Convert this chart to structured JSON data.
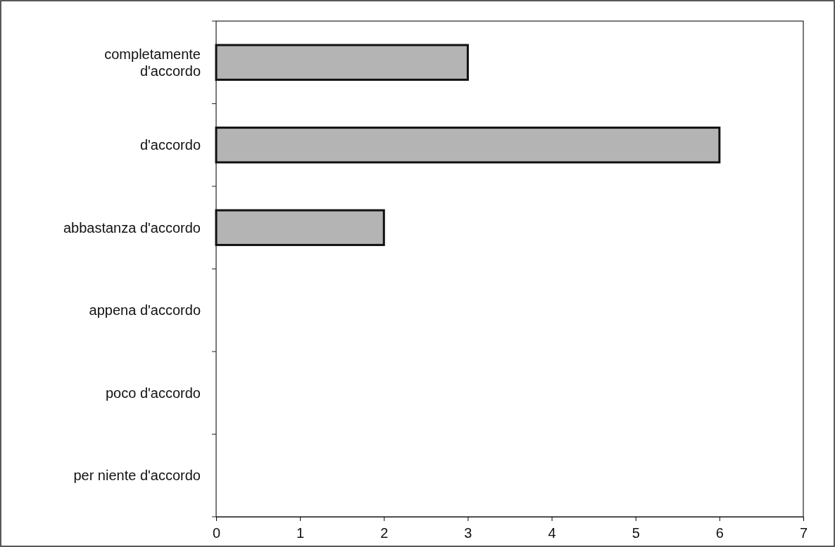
{
  "chart_data": {
    "type": "bar",
    "orientation": "horizontal",
    "categories": [
      "completamente d'accordo",
      "d'accordo",
      "abbastanza d'accordo",
      "appena d'accordo",
      "poco d'accordo",
      "per niente d'accordo"
    ],
    "values": [
      3,
      6,
      2,
      0,
      0,
      0
    ],
    "color": "#b4b4b4",
    "xlim": [
      0,
      7
    ],
    "xticks": [
      0,
      1,
      2,
      3,
      4,
      5,
      6,
      7
    ],
    "grid": false
  }
}
